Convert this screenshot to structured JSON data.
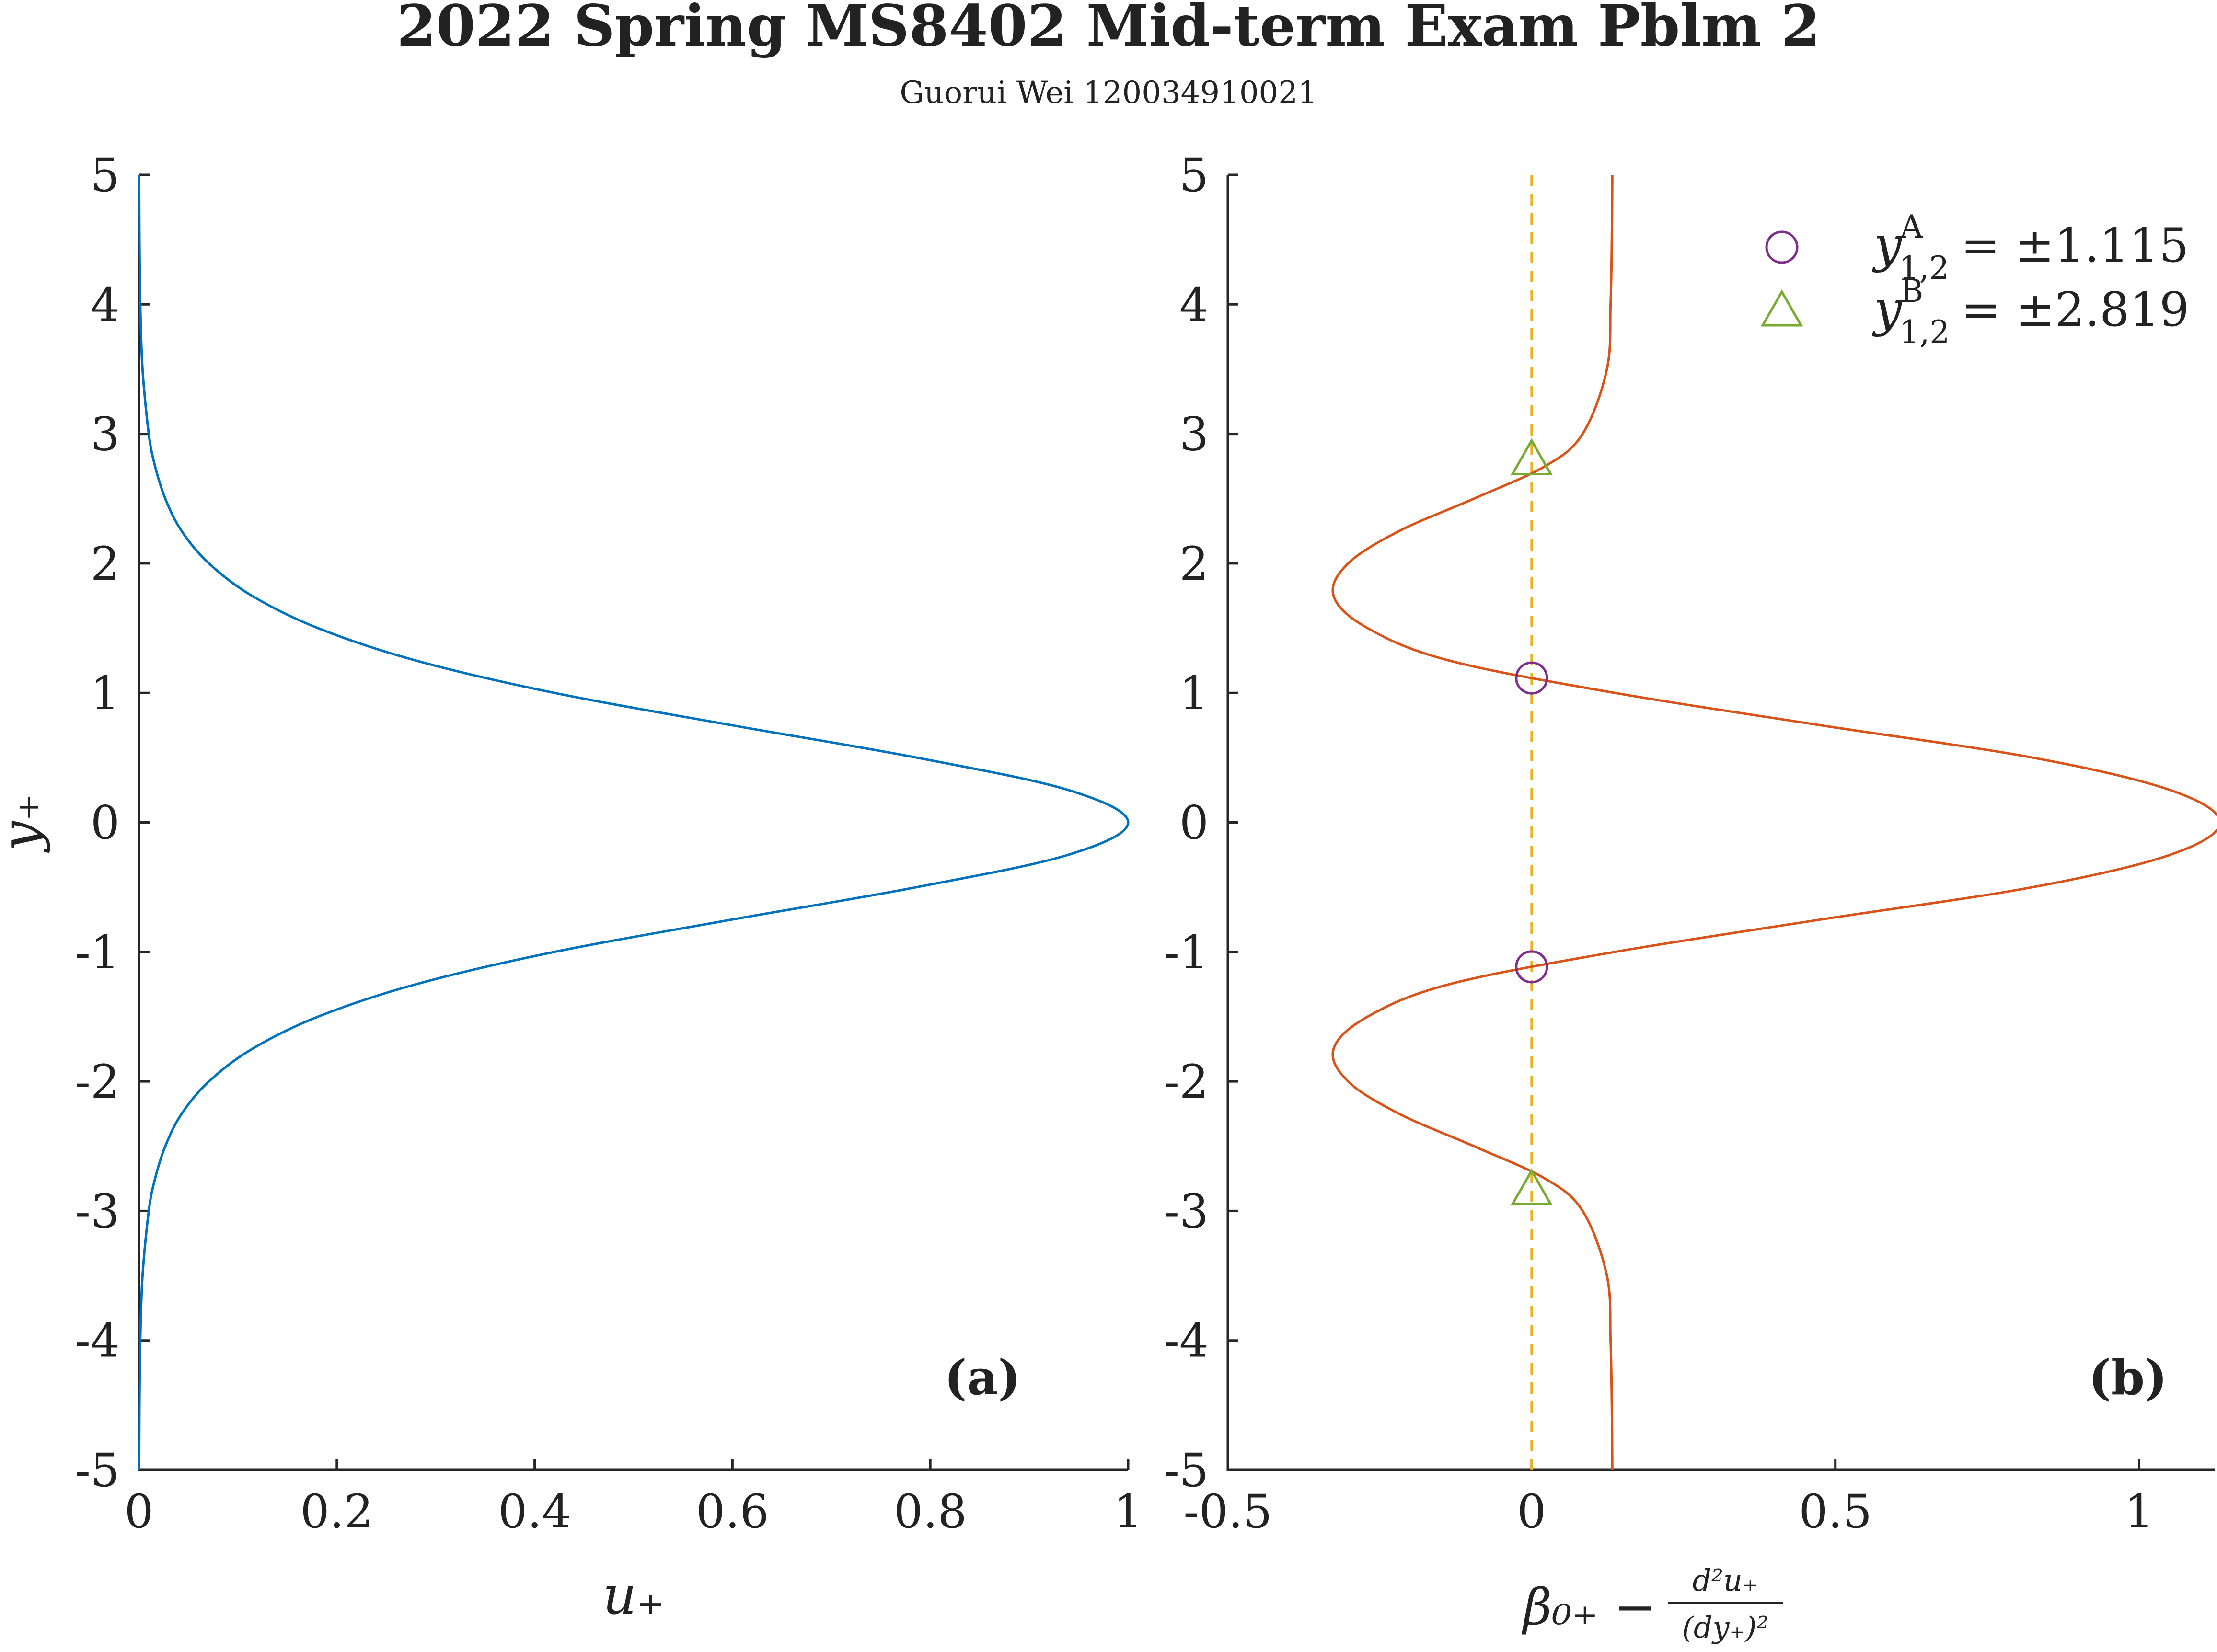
{
  "figure": {
    "title": "2022 Spring MS8402 Mid-term Exam Pblm 2",
    "subtitle": "Guorui Wei 120034910021"
  },
  "chart_data": [
    {
      "type": "line",
      "panel_label": "(a)",
      "xlabel": "u₊",
      "ylabel": "y₊",
      "xlim": [
        0,
        1
      ],
      "ylim": [
        -5,
        5
      ],
      "xticks": [
        "0",
        "0.2",
        "0.4",
        "0.6",
        "0.8",
        "1"
      ],
      "yticks": [
        "5",
        "4",
        "3",
        "2",
        "1",
        "0",
        "-1",
        "-2",
        "-3",
        "-4",
        "-5"
      ],
      "grid": false,
      "series": [
        {
          "color": "#0072BD",
          "y": [
            -5,
            -4.5,
            -4,
            -3.5,
            -3,
            -2.75,
            -2.5,
            -2.25,
            -2,
            -1.75,
            -1.5,
            -1.25,
            -1,
            -0.75,
            -0.5,
            -0.25,
            0,
            0.25,
            0.5,
            0.75,
            1,
            1.25,
            1.5,
            1.75,
            2,
            2.25,
            2.5,
            2.75,
            3,
            3.5,
            4,
            4.5,
            5
          ],
          "x": [
            0.0002,
            0.0005,
            0.0013,
            0.0036,
            0.0099,
            0.0163,
            0.0266,
            0.0431,
            0.0707,
            0.1142,
            0.181,
            0.2799,
            0.42,
            0.5997,
            0.7864,
            0.9395,
            1.0,
            0.9395,
            0.7864,
            0.5997,
            0.42,
            0.2799,
            0.181,
            0.1142,
            0.0707,
            0.0431,
            0.0266,
            0.0163,
            0.0099,
            0.0036,
            0.0013,
            0.0005,
            0.0002
          ]
        }
      ]
    },
    {
      "type": "line",
      "panel_label": "(b)",
      "xlabel_main": "β₀₊ −",
      "xlabel_num": "d²u₊",
      "xlabel_den": "(dy₊)²",
      "xlim": [
        -0.5,
        1.125
      ],
      "ylim": [
        -5,
        5
      ],
      "xticks": [
        "-0.5",
        "0",
        "0.5",
        "1"
      ],
      "xtick_values": [
        -0.5,
        0,
        0.5,
        1
      ],
      "yticks": [
        "5",
        "4",
        "3",
        "2",
        "1",
        "0",
        "-1",
        "-2",
        "-3",
        "-4",
        "-5"
      ],
      "grid": false,
      "legend_position": "top-right",
      "series": [
        {
          "color": "#D95319",
          "y": [
            -5,
            -4.5,
            -4,
            -3.5,
            -3,
            -2.75,
            -2.5,
            -2.25,
            -2,
            -1.75,
            -1.5,
            -1.25,
            -1,
            -0.75,
            -0.5,
            -0.25,
            0,
            0.25,
            0.5,
            0.75,
            1,
            1.25,
            1.5,
            1.75,
            2,
            2.25,
            2.5,
            2.75,
            3,
            3.5,
            4,
            4.5,
            5
          ],
          "x": [
            0.1329,
            0.132,
            0.13,
            0.124,
            0.084,
            0.022,
            -0.095,
            -0.218,
            -0.302,
            -0.326,
            -0.27,
            -0.136,
            0.137,
            0.476,
            0.825,
            1.051,
            1.133,
            1.051,
            0.825,
            0.476,
            0.137,
            -0.136,
            -0.27,
            -0.326,
            -0.302,
            -0.218,
            -0.095,
            0.022,
            0.084,
            0.124,
            0.13,
            0.132,
            0.1329
          ]
        },
        {
          "color": "#EDB120",
          "style": "dashed",
          "x": [
            0,
            0
          ],
          "y": [
            -5,
            5
          ]
        }
      ],
      "markers": [
        {
          "name": "y^A_{1,2} = ±1.115",
          "shape": "circle",
          "color": "#7E2F8E",
          "x": [
            0,
            0
          ],
          "y": [
            1.115,
            -1.115
          ]
        },
        {
          "name": "y^B_{1,2} = ±2.819",
          "shape": "triangle",
          "color": "#77AC30",
          "x": [
            0,
            0
          ],
          "y": [
            2.819,
            -2.819
          ]
        }
      ],
      "legend": [
        {
          "var": "y",
          "sup": "A",
          "sub": "1,2",
          "value": "= ±1.115"
        },
        {
          "var": "y",
          "sup": "B",
          "sub": "1,2",
          "value": "= ±2.819"
        }
      ]
    }
  ]
}
